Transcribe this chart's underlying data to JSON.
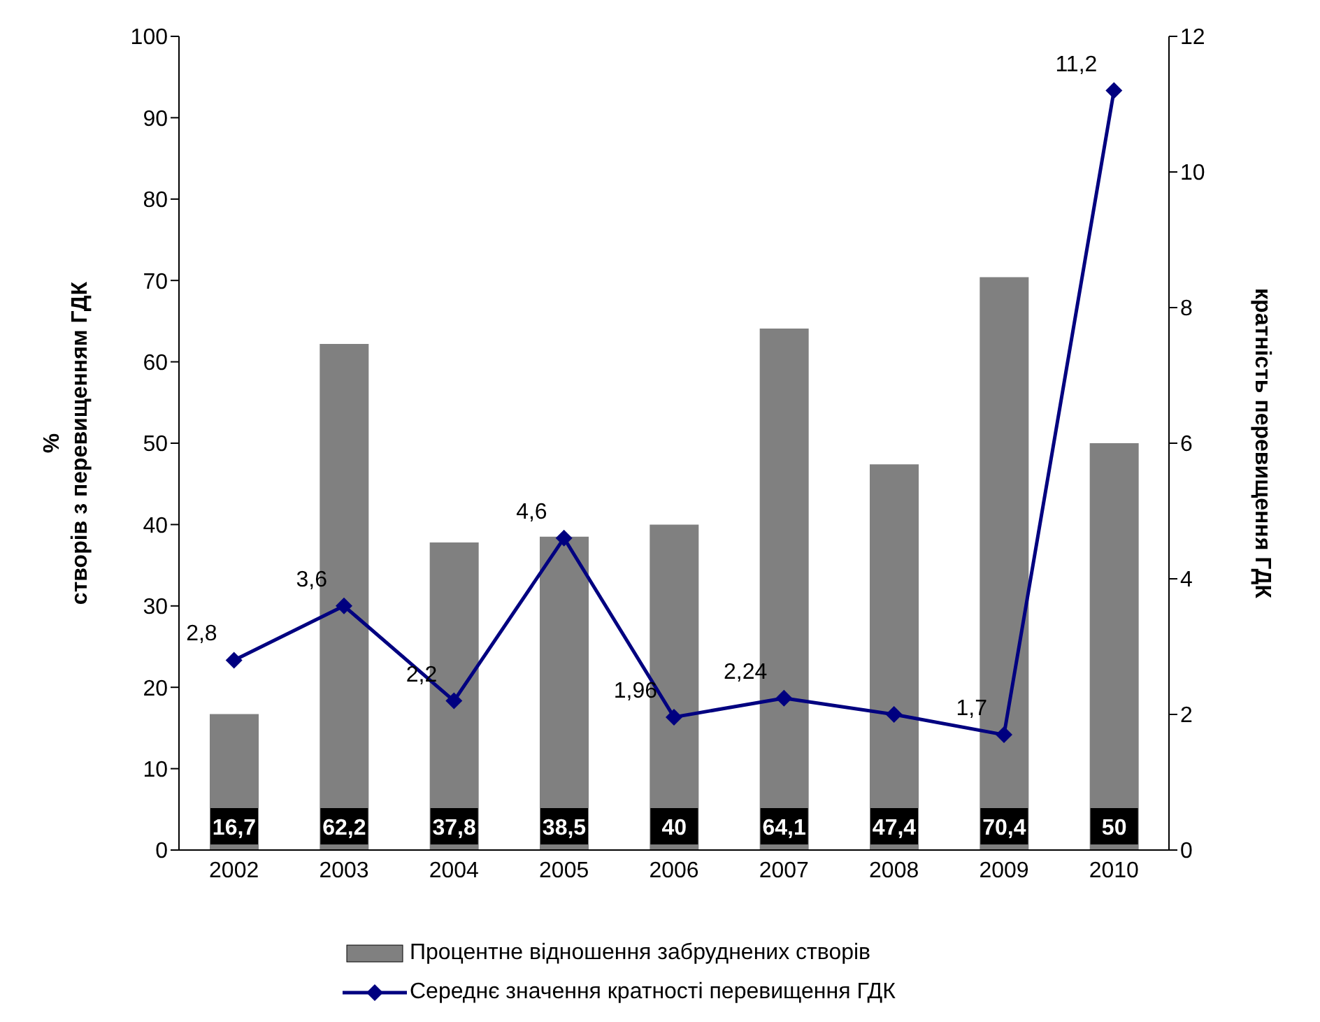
{
  "chart_data": {
    "type": "bar",
    "categories": [
      "2002",
      "2003",
      "2004",
      "2005",
      "2006",
      "2007",
      "2008",
      "2009",
      "2010"
    ],
    "ylabel": "%\nстворів з перевищенням ГДК",
    "y2label": "кратність перевищення ГДК",
    "ylim": [
      0,
      100
    ],
    "yticks": [
      0,
      10,
      20,
      30,
      40,
      50,
      60,
      70,
      80,
      90,
      100
    ],
    "y2lim": [
      0,
      12
    ],
    "y2ticks": [
      0,
      2,
      4,
      6,
      8,
      10,
      12
    ],
    "series": [
      {
        "name": "Процентне відношення забруднених створів",
        "color": "#808080",
        "values": [
          16.7,
          62.2,
          37.8,
          38.5,
          40,
          64.1,
          47.4,
          70.4,
          50
        ],
        "value_labels": [
          "16,7",
          "62,2",
          "37,8",
          "38,5",
          "40",
          "64,1",
          "47,4",
          "70,4",
          "50"
        ]
      },
      {
        "name": "Середнє значення кратності перевищення ГДК",
        "type": "line",
        "axis": "y2",
        "color": "#000080",
        "marker": "diamond",
        "line_style": "solid",
        "values": [
          2.8,
          3.6,
          2.2,
          4.6,
          1.96,
          2.24,
          2,
          1.7,
          11.2
        ],
        "value_labels": [
          "2,8",
          "3,6",
          "2,2",
          "4,6",
          "1,96",
          "2,24",
          null,
          "1,7",
          "11,2"
        ]
      }
    ],
    "grid": false,
    "legend": "bottom"
  }
}
